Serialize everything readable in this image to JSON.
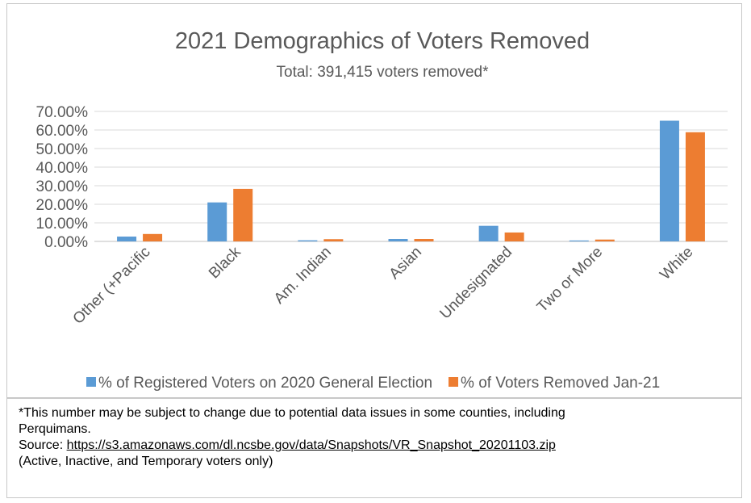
{
  "chart_data": {
    "type": "bar",
    "title": "2021 Demographics of Voters Removed",
    "subtitle": "Total: 391,415 voters removed*",
    "categories": [
      "Other (+Pacific",
      "Black",
      "Am. Indian",
      "Asian",
      "Undesignated",
      "Two or More",
      "White"
    ],
    "series": [
      {
        "name": "% of Registered Voters on 2020 General Election",
        "color": "#5b9bd5",
        "values": [
          2.6,
          21.0,
          0.6,
          1.3,
          8.4,
          0.5,
          65.0
        ]
      },
      {
        "name": "% of Voters Removed Jan-21",
        "color": "#ed7d31",
        "values": [
          4.0,
          28.3,
          1.2,
          1.3,
          4.8,
          1.0,
          58.8
        ]
      }
    ],
    "ylim": [
      0,
      70
    ],
    "yticks": [
      "0.00%",
      "10.00%",
      "20.00%",
      "30.00%",
      "40.00%",
      "50.00%",
      "60.00%",
      "70.00%"
    ],
    "grid": true,
    "legend_position": "bottom"
  },
  "note": {
    "line1": "*This number may be subject to change due to potential data issues in some counties, including",
    "line2": "Perquimans.",
    "source_prefix": "Source: ",
    "source_link": "https://s3.amazonaws.com/dl.ncsbe.gov/data/Snapshots/VR_Snapshot_20201103.zip",
    "line4": "(Active, Inactive, and Temporary voters only)"
  }
}
